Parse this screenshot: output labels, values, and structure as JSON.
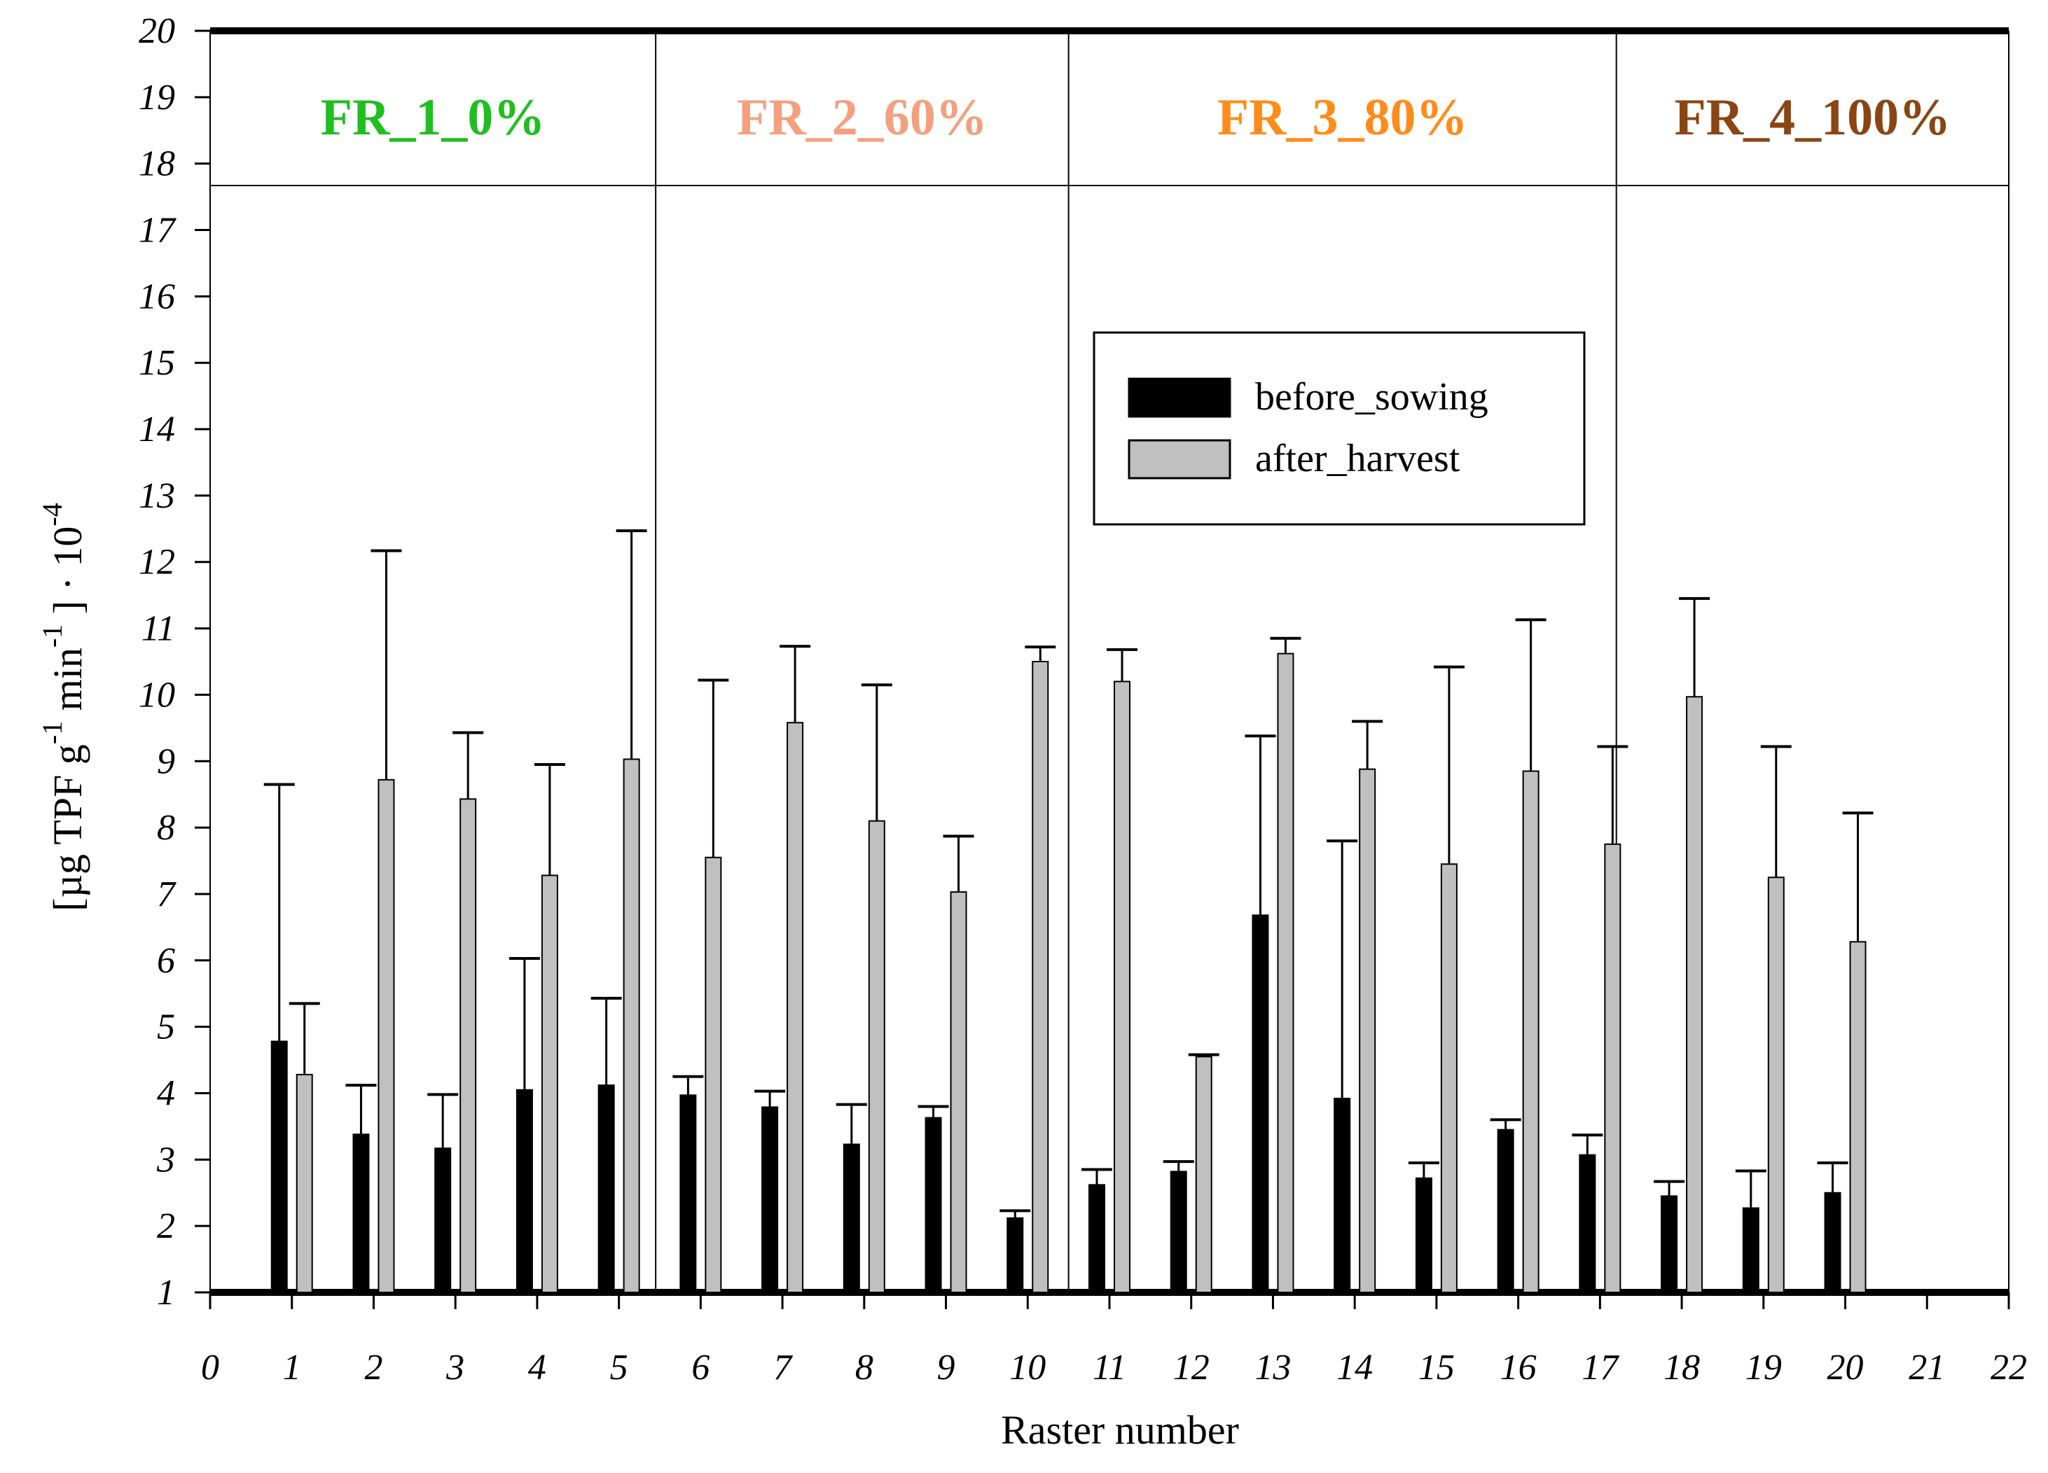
{
  "chart_data": {
    "type": "bar",
    "xlabel": "Raster number",
    "ylabel_parts": [
      "[µg TPF g",
      "-1",
      " min",
      "-1",
      " ] · 10",
      "-4"
    ],
    "xlim": [
      0,
      22
    ],
    "ylim": [
      1,
      20
    ],
    "x_ticks": [
      "0",
      "1",
      "2",
      "3",
      "4",
      "5",
      "6",
      "7",
      "8",
      "9",
      "10",
      "11",
      "12",
      "13",
      "14",
      "15",
      "16",
      "17",
      "18",
      "19",
      "20",
      "21",
      "22"
    ],
    "y_ticks": [
      "1",
      "2",
      "3",
      "4",
      "5",
      "6",
      "7",
      "8",
      "9",
      "10",
      "11",
      "12",
      "13",
      "14",
      "15",
      "16",
      "17",
      "18",
      "19",
      "20"
    ],
    "categories": [
      1,
      2,
      3,
      4,
      5,
      6,
      7,
      8,
      9,
      10,
      11,
      12,
      13,
      14,
      15,
      16,
      17,
      18,
      19,
      20
    ],
    "series": [
      {
        "name": "before_sowing",
        "color": "#000000",
        "values": [
          4.78,
          3.38,
          3.17,
          4.05,
          4.12,
          3.97,
          3.79,
          3.23,
          3.63,
          2.12,
          2.62,
          2.82,
          6.68,
          3.92,
          2.72,
          3.45,
          3.07,
          2.45,
          2.27,
          2.5
        ],
        "err_top": [
          8.65,
          4.12,
          3.98,
          6.03,
          5.43,
          4.25,
          4.03,
          3.83,
          3.8,
          2.23,
          2.85,
          2.97,
          9.38,
          7.8,
          2.95,
          3.6,
          3.37,
          2.67,
          2.83,
          2.95
        ]
      },
      {
        "name": "after_harvest",
        "color": "#c0c0c0",
        "values": [
          4.28,
          8.72,
          8.43,
          7.28,
          9.03,
          7.55,
          9.58,
          8.1,
          7.03,
          10.5,
          10.2,
          4.55,
          10.62,
          8.88,
          7.45,
          8.85,
          7.75,
          9.97,
          7.25,
          6.28
        ],
        "err_top": [
          5.35,
          12.17,
          9.43,
          8.95,
          12.47,
          10.22,
          10.73,
          10.15,
          7.87,
          10.72,
          10.68,
          4.58,
          10.85,
          9.6,
          10.42,
          11.13,
          9.22,
          11.45,
          9.22,
          8.22
        ]
      }
    ],
    "groups": [
      {
        "label": "FR_1_0%",
        "color": "#1fbf1f"
      },
      {
        "label": "FR_2_60%",
        "color": "#f4a07e"
      },
      {
        "label": "FR_3_80%",
        "color": "#ff8c1a"
      },
      {
        "label": "FR_4_100%",
        "color": "#8b4513"
      }
    ],
    "group_dividers_x": [
      5.45,
      10.5,
      17.2
    ],
    "legend": {
      "position": "top-right-inner",
      "entries": [
        "before_sowing",
        "after_harvest"
      ]
    },
    "grid": false
  }
}
